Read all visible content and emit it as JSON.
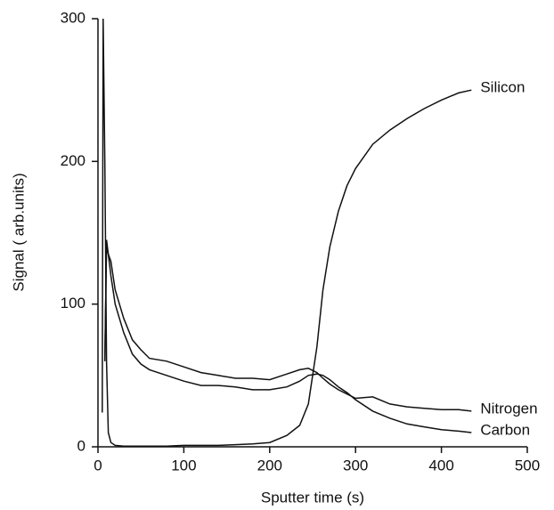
{
  "chart_data": {
    "type": "line",
    "xlabel": "Sputter time (s)",
    "ylabel": "Signal ( arb.units)",
    "x": [
      5,
      6,
      8,
      10,
      12,
      15,
      20,
      30,
      40,
      50,
      60,
      80,
      100,
      120,
      140,
      160,
      180,
      200,
      220,
      235,
      245,
      255,
      262,
      270,
      280,
      290,
      300,
      320,
      340,
      360,
      380,
      400,
      420,
      435
    ],
    "series": [
      {
        "name": "Silicon",
        "color": "#111111",
        "values": [
          24,
          300,
          200,
          60,
          10,
          3,
          1,
          0.5,
          0.5,
          0.5,
          0.5,
          0.5,
          1,
          1,
          1,
          1.5,
          2,
          3,
          8,
          15,
          30,
          70,
          110,
          140,
          165,
          183,
          195,
          212,
          222,
          230,
          237,
          243,
          248,
          250
        ]
      },
      {
        "name": "Nitrogen",
        "color": "#111111",
        "values": [
          null,
          null,
          60,
          140,
          135,
          130,
          110,
          90,
          75,
          68,
          62,
          60,
          56,
          52,
          50,
          48,
          48,
          47,
          51,
          54,
          55,
          52,
          48,
          44,
          40,
          37,
          34,
          35,
          30,
          28,
          27,
          26,
          26,
          25
        ]
      },
      {
        "name": "Carbon",
        "color": "#111111",
        "values": [
          null,
          null,
          60,
          145,
          135,
          120,
          100,
          80,
          65,
          58,
          54,
          50,
          46,
          43,
          43,
          42,
          40,
          40,
          42,
          46,
          50,
          51,
          50,
          47,
          42,
          38,
          33,
          25,
          20,
          16,
          14,
          12,
          11,
          10
        ]
      }
    ],
    "xlim": [
      0,
      500
    ],
    "xticks": [
      0,
      100,
      200,
      300,
      400,
      500
    ],
    "ylim": [
      0,
      300
    ],
    "yticks": [
      0,
      100,
      200,
      300
    ]
  }
}
